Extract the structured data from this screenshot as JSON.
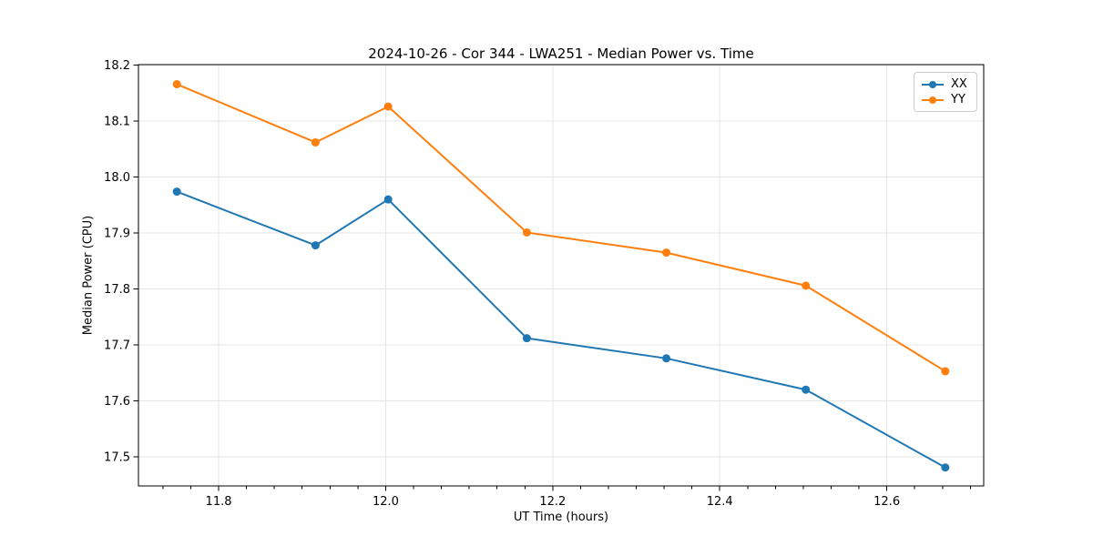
{
  "chart_data": {
    "type": "line",
    "title": "2024-10-26 - Cor 344 - LWA251 - Median Power vs. Time",
    "xlabel": "UT Time (hours)",
    "ylabel": "Median Power (CPU)",
    "x": [
      11.75,
      11.916,
      12.003,
      12.169,
      12.336,
      12.503,
      12.67
    ],
    "series": [
      {
        "name": "XX",
        "color": "#1f77b4",
        "values": [
          17.974,
          17.878,
          17.96,
          17.712,
          17.676,
          17.62,
          17.481
        ]
      },
      {
        "name": "YY",
        "color": "#ff7f0e",
        "values": [
          18.166,
          18.062,
          18.126,
          17.901,
          17.865,
          17.806,
          17.653
        ]
      }
    ],
    "xlim": [
      11.704,
      12.716
    ],
    "ylim": [
      17.448,
      18.201
    ],
    "xticks": {
      "values": [
        11.8,
        12.0,
        12.2,
        12.4,
        12.6
      ],
      "labels": [
        "11.8",
        "12.0",
        "12.2",
        "12.4",
        "12.6"
      ]
    },
    "yticks": {
      "values": [
        17.5,
        17.6,
        17.7,
        17.8,
        17.9,
        18.0,
        18.1,
        18.2
      ],
      "labels": [
        "17.5",
        "17.6",
        "17.7",
        "17.8",
        "17.9",
        "18.0",
        "18.1",
        "18.2"
      ]
    },
    "x_minor_step": 0.033333333,
    "grid": true,
    "legend": {
      "position": "upper right"
    },
    "marker": "circle",
    "colors": {
      "grid": "#e6e6e6",
      "spine": "#000000",
      "text": "#000000",
      "background": "#ffffff"
    }
  }
}
